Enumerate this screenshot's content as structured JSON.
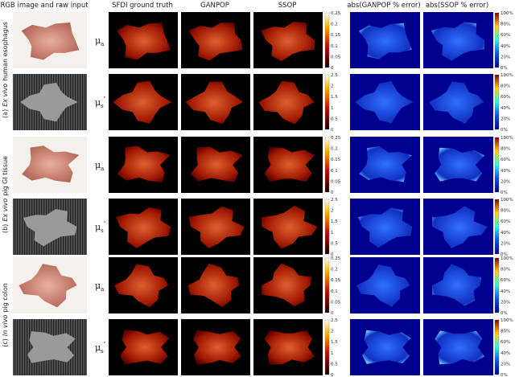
{
  "header": {
    "columns": [
      "RGB image and raw input",
      "SFDI ground truth",
      "GANPOP",
      "SSOP",
      "abs(GANPOP % error)",
      "abs(SSOP % error)"
    ]
  },
  "groups": [
    {
      "index": "(a)",
      "italic": "Ex vivo",
      "rest": "human esophagus"
    },
    {
      "index": "(b)",
      "italic": "Ex vivo",
      "rest": "pig GI tissue"
    },
    {
      "index": "(c)",
      "italic": "In vivo",
      "rest": "pig colon"
    }
  ],
  "params": [
    {
      "symbol": "μ",
      "sub": "a"
    },
    {
      "symbol": "μ",
      "sub": "s",
      "prime": "′"
    }
  ],
  "colorbars": {
    "mua": [
      "0",
      "0.05",
      "0.1",
      "0.15",
      "0.2",
      "0.25"
    ],
    "mus": [
      "0",
      "0.5",
      "1",
      "1.5",
      "2",
      "2.5"
    ],
    "error": [
      "0%",
      "20%",
      "40%",
      "60%",
      "80%",
      "100%"
    ]
  }
}
